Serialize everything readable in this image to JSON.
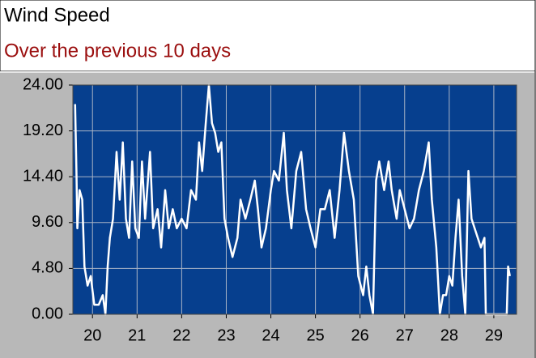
{
  "chart_data": {
    "type": "line",
    "title": "Wind Speed",
    "subtitle": "Over the previous 10 days",
    "xlim": [
      19.56,
      29.51
    ],
    "xticks": [
      20,
      21,
      22,
      23,
      24,
      25,
      26,
      27,
      28,
      29
    ],
    "ylim": [
      0,
      24
    ],
    "yticks": [
      {
        "value": 0,
        "label": "0.00"
      },
      {
        "value": 4.8,
        "label": "4.80"
      },
      {
        "value": 9.6,
        "label": "9.60"
      },
      {
        "value": 14.4,
        "label": "14.40"
      },
      {
        "value": 19.2,
        "label": "19.20"
      },
      {
        "value": 24,
        "label": "24.00"
      }
    ],
    "grid": true,
    "background": "#063f8e",
    "series": [
      {
        "color": "#ffffff",
        "x": [
          19.61,
          19.64,
          19.66,
          19.71,
          19.77,
          19.82,
          19.89,
          19.96,
          20.04,
          20.14,
          20.23,
          20.29,
          20.34,
          20.39,
          20.46,
          20.54,
          20.61,
          20.68,
          20.75,
          20.82,
          20.89,
          20.96,
          21.04,
          21.11,
          21.18,
          21.29,
          21.36,
          21.46,
          21.54,
          21.63,
          21.71,
          21.8,
          21.89,
          22.0,
          22.11,
          22.21,
          22.32,
          22.39,
          22.46,
          22.54,
          22.61,
          22.68,
          22.75,
          22.82,
          22.89,
          22.96,
          23.04,
          23.14,
          23.25,
          23.32,
          23.43,
          23.54,
          23.64,
          23.71,
          23.79,
          23.89,
          24.0,
          24.07,
          24.18,
          24.29,
          24.36,
          24.46,
          24.57,
          24.68,
          24.79,
          24.89,
          25.0,
          25.11,
          25.21,
          25.32,
          25.43,
          25.54,
          25.64,
          25.75,
          25.86,
          25.96,
          26.07,
          26.14,
          26.21,
          26.29,
          26.36,
          26.43,
          26.54,
          26.64,
          26.71,
          26.82,
          26.89,
          27.0,
          27.11,
          27.21,
          27.32,
          27.43,
          27.54,
          27.61,
          27.71,
          27.79,
          27.86,
          27.93,
          28.0,
          28.07,
          28.14,
          28.21,
          28.29,
          28.36,
          28.43,
          28.5,
          28.57,
          28.64,
          28.71,
          28.79,
          28.82,
          28.89,
          29.04,
          29.29,
          29.32,
          29.36
        ],
        "values": [
          22,
          15,
          9,
          13,
          12,
          5,
          3,
          4,
          1,
          1,
          2,
          0,
          5,
          8,
          10,
          17,
          12,
          18,
          10,
          8,
          16,
          9,
          8,
          16,
          10,
          17,
          9,
          11,
          7,
          13,
          9,
          11,
          9,
          10,
          9,
          13,
          12,
          18,
          15,
          20,
          24,
          20,
          19,
          17,
          18,
          10,
          8,
          6,
          8,
          12,
          10,
          12,
          14,
          11,
          7,
          9,
          13,
          15,
          14,
          19,
          13,
          9,
          15,
          17,
          11,
          9,
          7,
          11,
          11,
          13,
          8,
          13,
          19,
          15,
          12,
          4,
          2,
          5,
          2,
          0,
          14,
          16,
          13,
          16,
          13,
          10,
          13,
          11,
          9,
          10,
          13,
          15,
          18,
          12,
          7,
          0,
          2,
          2,
          4,
          3,
          8,
          12,
          4,
          0,
          15,
          10,
          9,
          8,
          7,
          8,
          0,
          0,
          0,
          0,
          5,
          4
        ]
      }
    ]
  }
}
